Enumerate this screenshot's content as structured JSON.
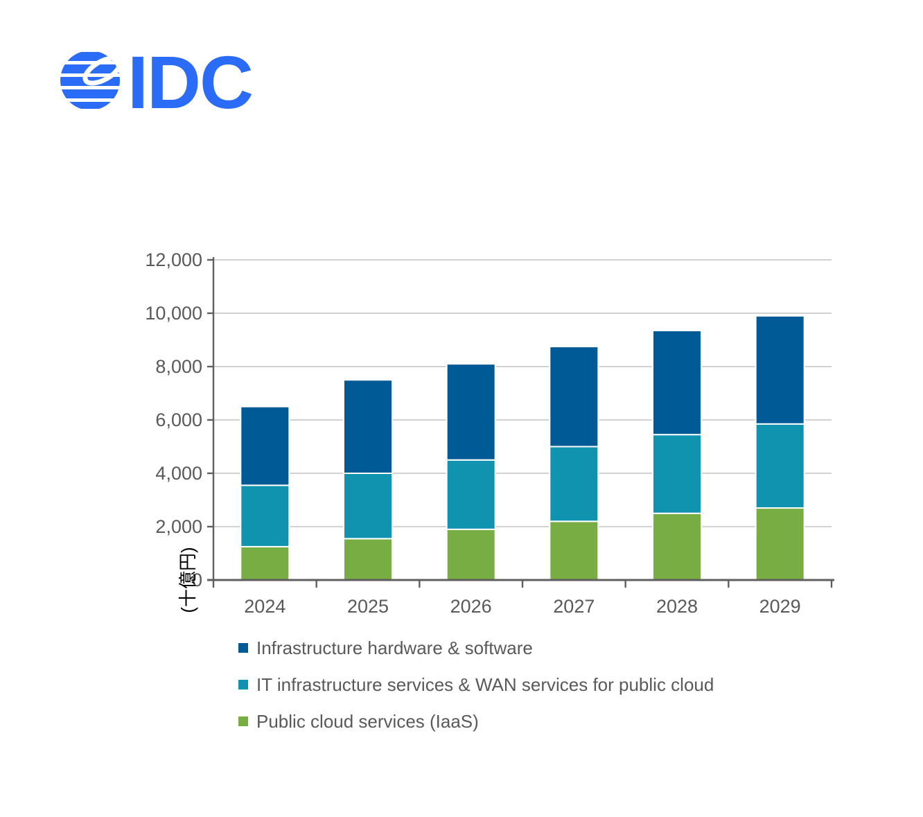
{
  "logo": {
    "text": "IDC",
    "color": "#2B6CF6",
    "icon": "idc-globe"
  },
  "colors": {
    "axis_text": "#595959",
    "gridline": "#C3C3C3",
    "axis_line": "#5f5f5f",
    "panel_bg": "#ffffff",
    "segment_border": "#ffffff"
  },
  "chart_data": {
    "type": "bar",
    "stacked": true,
    "title": "",
    "xlabel": "",
    "ylabel": "(十億円)",
    "ylim": [
      0,
      12000
    ],
    "ytick_step": 2000,
    "ytick_labels": [
      "0",
      "2,000",
      "4,000",
      "6,000",
      "8,000",
      "10,000",
      "12,000"
    ],
    "ytick_values": [
      0,
      2000,
      4000,
      6000,
      8000,
      10000,
      12000
    ],
    "grid": true,
    "categories": [
      "2024",
      "2025",
      "2026",
      "2027",
      "2028",
      "2029"
    ],
    "series": [
      {
        "name": "Public cloud services (IaaS)",
        "color": "#77AD43",
        "values": [
          1250,
          1550,
          1900,
          2200,
          2500,
          2700
        ]
      },
      {
        "name": "IT infrastructure services & WAN services for public cloud",
        "color": "#0F93AE",
        "values": [
          2300,
          2450,
          2600,
          2800,
          2950,
          3150
        ]
      },
      {
        "name": "Infrastructure hardware & software",
        "color": "#005A96",
        "values": [
          2950,
          3500,
          3600,
          3750,
          3900,
          4050
        ]
      }
    ],
    "stack_tops": {
      "green_top": [
        1250,
        1550,
        1900,
        2200,
        2500,
        2700
      ],
      "teal_top": [
        3550,
        4000,
        4500,
        5000,
        5450,
        5850
      ],
      "total": [
        6500,
        7500,
        8100,
        8750,
        9350,
        9900
      ]
    },
    "legend_position": "bottom-left",
    "legend": [
      {
        "label": "Infrastructure hardware & software",
        "color": "#005A96"
      },
      {
        "label": "IT infrastructure services & WAN services for public cloud",
        "color": "#0F93AE"
      },
      {
        "label": "Public cloud services (IaaS)",
        "color": "#77AD43"
      }
    ]
  }
}
